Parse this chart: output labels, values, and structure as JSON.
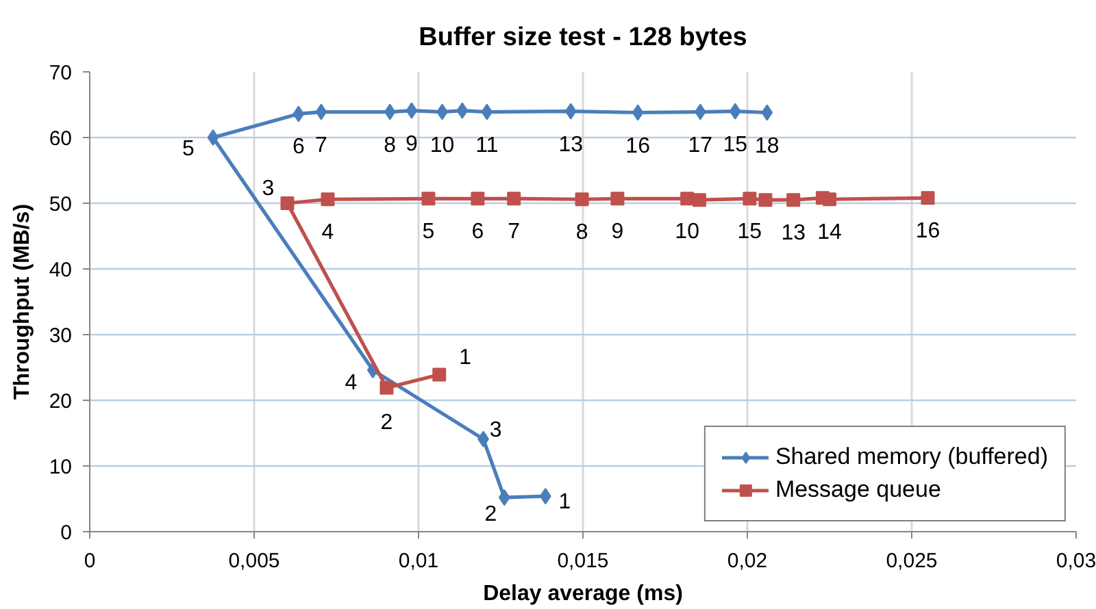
{
  "chart_data": {
    "type": "line",
    "title": "Buffer size test - 128 bytes",
    "xlabel": "Delay average (ms)",
    "ylabel": "Throughput (MB/s)",
    "xlim": [
      0,
      0.03
    ],
    "xticks": [
      0,
      {
        "value": 0.005,
        "label": "0,005"
      },
      {
        "value": 0.01,
        "label": "0,01"
      },
      {
        "value": 0.015,
        "label": "0,015"
      },
      {
        "value": 0.02,
        "label": "0,02"
      },
      {
        "value": 0.025,
        "label": "0,025"
      },
      {
        "value": 0.03,
        "label": "0,03"
      }
    ],
    "ylim": [
      0,
      70
    ],
    "yticks": [
      0,
      10,
      20,
      30,
      40,
      50,
      60,
      70
    ],
    "grid": true,
    "legend": "bottom right",
    "series": [
      {
        "name": "Shared memory (buffered)",
        "color": "#4a7ebb",
        "marker": "diamond",
        "x": [
          0.01386,
          0.01261,
          0.01197,
          0.00861,
          0.00375,
          0.00635,
          0.00704,
          0.00913,
          0.00979,
          0.01072,
          0.01133,
          0.01208,
          0.01463,
          0.01667,
          0.01857,
          0.01963,
          0.0206
        ],
        "values": [
          5.4,
          5.2,
          14.1,
          24.6,
          60,
          63.6,
          63.9,
          63.9,
          64.1,
          63.9,
          64.1,
          63.9,
          64.0,
          63.8,
          63.9,
          64.0,
          63.8
        ]
      },
      {
        "name": "Message queue",
        "color": "#c0504d",
        "marker": "square",
        "x": [
          0.01063,
          0.00903,
          0.00601,
          0.00724,
          0.0103,
          0.0118,
          0.0129,
          0.01497,
          0.01605,
          0.01817,
          0.01854,
          0.02007,
          0.02055,
          0.0214,
          0.02229,
          0.0225,
          0.02549
        ],
        "values": [
          23.9,
          21.9,
          50.0,
          50.6,
          50.7,
          50.7,
          50.7,
          50.6,
          50.7,
          50.7,
          50.5,
          50.7,
          50.5,
          50.5,
          50.8,
          50.6,
          50.8
        ]
      }
    ],
    "annotations": [
      {
        "text": "1",
        "x": 0.01386,
        "y": 5.4
      },
      {
        "text": "2",
        "x": 0.01261,
        "y": 5.2
      },
      {
        "text": "3",
        "x": 0.01197,
        "y": 14.1
      },
      {
        "text": "4",
        "x": 0.00861,
        "y": 24.6
      },
      {
        "text": "5",
        "x": 0.00375,
        "y": 60
      },
      {
        "text": "6",
        "x": 0.00635,
        "y": 63.6
      },
      {
        "text": "7",
        "x": 0.00704,
        "y": 63.9
      },
      {
        "text": "8",
        "x": 0.00913,
        "y": 63.9
      },
      {
        "text": "9",
        "x": 0.00979,
        "y": 64.1
      },
      {
        "text": "10",
        "x": 0.01072,
        "y": 63.9
      },
      {
        "text": "11",
        "x": 0.01208,
        "y": 63.9
      },
      {
        "text": "13",
        "x": 0.01463,
        "y": 64.0
      },
      {
        "text": "16",
        "x": 0.01667,
        "y": 63.8
      },
      {
        "text": "17",
        "x": 0.01857,
        "y": 63.9
      },
      {
        "text": "15",
        "x": 0.01963,
        "y": 64.0
      },
      {
        "text": "18",
        "x": 0.0206,
        "y": 63.8
      },
      {
        "text": "1",
        "x": 0.01063,
        "y": 23.9
      },
      {
        "text": "2",
        "x": 0.00903,
        "y": 21.9
      },
      {
        "text": "3",
        "x": 0.00601,
        "y": 50.0
      },
      {
        "text": "4",
        "x": 0.00724,
        "y": 50.6
      },
      {
        "text": "5",
        "x": 0.0103,
        "y": 50.7
      },
      {
        "text": "6",
        "x": 0.0118,
        "y": 50.7
      },
      {
        "text": "7",
        "x": 0.0129,
        "y": 50.7
      },
      {
        "text": "8",
        "x": 0.01497,
        "y": 50.6
      },
      {
        "text": "9",
        "x": 0.01605,
        "y": 50.7
      },
      {
        "text": "10",
        "x": 0.01817,
        "y": 50.7
      },
      {
        "text": "15",
        "x": 0.02007,
        "y": 50.7
      },
      {
        "text": "13",
        "x": 0.0214,
        "y": 50.5
      },
      {
        "text": "14",
        "x": 0.0225,
        "y": 50.6
      },
      {
        "text": "16",
        "x": 0.02549,
        "y": 50.8
      }
    ]
  }
}
